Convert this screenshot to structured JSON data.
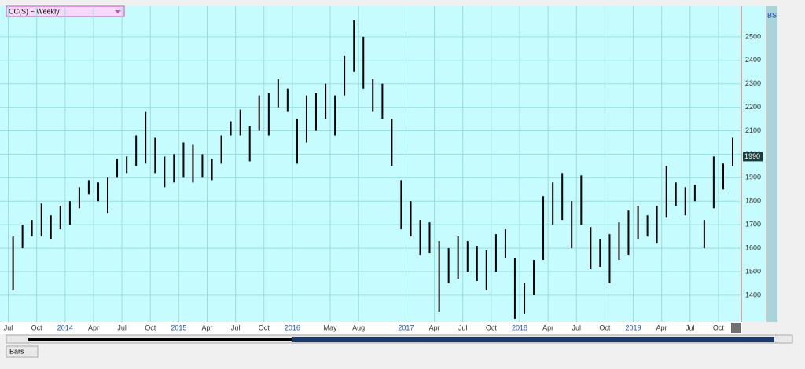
{
  "chart_data": {
    "type": "hilo",
    "title": "CC(S) ~ Weekly",
    "corner_label": "BS",
    "footer_label": "Bars",
    "color": "#000000",
    "background": "#c6fcfd",
    "grid": true,
    "last_price": 1990,
    "x": [
      2013.542,
      2013.625,
      2013.708,
      2013.792,
      2013.875,
      2013.958,
      2014.042,
      2014.125,
      2014.208,
      2014.292,
      2014.375,
      2014.458,
      2014.542,
      2014.625,
      2014.708,
      2014.792,
      2014.875,
      2014.958,
      2015.042,
      2015.125,
      2015.208,
      2015.292,
      2015.375,
      2015.458,
      2015.542,
      2015.625,
      2015.708,
      2015.792,
      2015.875,
      2015.958,
      2016.042,
      2016.125,
      2016.208,
      2016.292,
      2016.375,
      2016.458,
      2016.542,
      2016.625,
      2016.708,
      2016.792,
      2016.875,
      2016.958,
      2017.042,
      2017.125,
      2017.208,
      2017.292,
      2017.375,
      2017.458,
      2017.542,
      2017.625,
      2017.708,
      2017.792,
      2017.875,
      2017.958,
      2018.042,
      2018.125,
      2018.208,
      2018.292,
      2018.375,
      2018.458,
      2018.542,
      2018.625,
      2018.708,
      2018.792,
      2018.875,
      2018.958,
      2019.042,
      2019.125,
      2019.208,
      2019.292,
      2019.375,
      2019.458,
      2019.542,
      2019.625,
      2019.708,
      2019.792,
      2019.875
    ],
    "high": [
      1650,
      1700,
      1720,
      1790,
      1740,
      1780,
      1800,
      1860,
      1890,
      1880,
      1900,
      1980,
      1990,
      2080,
      2180,
      2070,
      1990,
      2000,
      2050,
      2040,
      2000,
      1980,
      2080,
      2140,
      2190,
      2120,
      2250,
      2260,
      2320,
      2280,
      2150,
      2250,
      2260,
      2300,
      2250,
      2420,
      2570,
      2500,
      2320,
      2300,
      2150,
      1890,
      1800,
      1720,
      1710,
      1630,
      1600,
      1650,
      1630,
      1610,
      1590,
      1660,
      1680,
      1560,
      1450,
      1550,
      1820,
      1880,
      1920,
      1800,
      1910,
      1690,
      1640,
      1660,
      1710,
      1760,
      1780,
      1740,
      1780,
      1950,
      1880,
      1860,
      1870,
      1720,
      1990,
      1960,
      2070
    ],
    "low": [
      1420,
      1600,
      1650,
      1650,
      1640,
      1680,
      1700,
      1770,
      1830,
      1800,
      1750,
      1900,
      1920,
      1950,
      1960,
      1920,
      1860,
      1880,
      1900,
      1880,
      1900,
      1890,
      1960,
      2080,
      2080,
      1970,
      2100,
      2080,
      2200,
      2180,
      1960,
      2050,
      2100,
      2150,
      2080,
      2250,
      2350,
      2280,
      2180,
      2150,
      1950,
      1680,
      1650,
      1570,
      1580,
      1330,
      1450,
      1470,
      1500,
      1460,
      1420,
      1500,
      1560,
      1300,
      1320,
      1400,
      1550,
      1700,
      1720,
      1600,
      1700,
      1510,
      1520,
      1450,
      1550,
      1570,
      1640,
      1650,
      1620,
      1730,
      1780,
      1740,
      1800,
      1600,
      1770,
      1850,
      1950
    ],
    "xlim": [
      2013.427,
      2019.958
    ],
    "ylim": [
      1286,
      2630
    ],
    "xticks": [
      {
        "value": 2013.5,
        "label": "Jul"
      },
      {
        "value": 2013.75,
        "label": "Oct"
      },
      2014,
      {
        "value": 2014.25,
        "label": "Apr"
      },
      {
        "value": 2014.5,
        "label": "Jul"
      },
      {
        "value": 2014.75,
        "label": "Oct"
      },
      2015,
      {
        "value": 2015.25,
        "label": "Apr"
      },
      {
        "value": 2015.5,
        "label": "Jul"
      },
      {
        "value": 2015.75,
        "label": "Oct"
      },
      2016,
      {
        "value": 2016.333,
        "label": "May"
      },
      {
        "value": 2016.583,
        "label": "Aug"
      },
      2017,
      {
        "value": 2017.25,
        "label": "Apr"
      },
      {
        "value": 2017.5,
        "label": "Jul"
      },
      {
        "value": 2017.75,
        "label": "Oct"
      },
      2018,
      {
        "value": 2018.25,
        "label": "Apr"
      },
      {
        "value": 2018.5,
        "label": "Jul"
      },
      {
        "value": 2018.75,
        "label": "Oct"
      },
      2019,
      {
        "value": 2019.25,
        "label": "Apr"
      },
      {
        "value": 2019.5,
        "label": "Jul"
      },
      {
        "value": 2019.75,
        "label": "Oct"
      }
    ],
    "yticks": [
      1400,
      1500,
      1600,
      1700,
      1800,
      1900,
      2000,
      2100,
      2200,
      2300,
      2400,
      2500
    ]
  }
}
